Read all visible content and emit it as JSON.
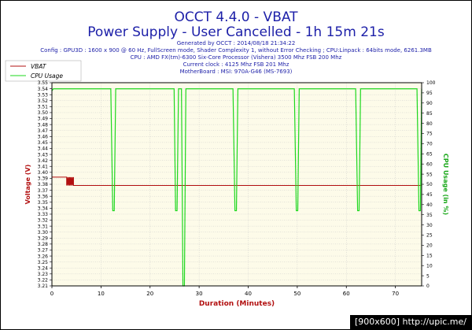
{
  "watermark": "[900x600] http://upic.me/",
  "colors": {
    "title": "#1c1fa8",
    "info": "#1c1fa8",
    "plot_bg": "#fdfbe9",
    "grid": "#c8c8c8",
    "frame_border": "#000000",
    "vbat": "#b21010",
    "cpu": "#1dd81d",
    "left_axis_label": "#b21010",
    "right_axis_label": "#1aa81a",
    "x_axis_label": "#b21010"
  },
  "chart_data": {
    "type": "line",
    "title": "OCCT 4.4.0 - VBAT",
    "subtitle": "Power Supply - User Cancelled - 1h 15m 21s",
    "info_lines": [
      "Generated by OCCT : 2014/08/18 21:34:22",
      "Config : GPU3D : 1600 x 900 @ 60 Hz, FullScreen mode, Shader Complexity 1, without Error Checking ; CPU:Linpack : 64bits mode, 6261.3MB",
      "CPU : AMD FX(tm)-6300 Six-Core Processor (Vishera) 3500 Mhz FSB 200 Mhz",
      "Current clock : 4125 Mhz FSB 201 Mhz",
      "MotherBoard : MSI: 970A-G46 (MS-7693)"
    ],
    "xlabel": "Duration (Minutes)",
    "ylabel_left": "Voltage (V)",
    "ylabel_right": "CPU Usage (in %)",
    "xlim": [
      0,
      75.35
    ],
    "ylim_left": [
      3.21,
      3.55
    ],
    "ylim_right": [
      0,
      100
    ],
    "x_ticks": [
      "0",
      "10",
      "20",
      "30",
      "40",
      "50",
      "60",
      "70"
    ],
    "y_left_ticks": [
      "3.21",
      "3.22",
      "3.23",
      "3.24",
      "3.25",
      "3.26",
      "3.27",
      "3.28",
      "3.29",
      "3.30",
      "3.31",
      "3.32",
      "3.33",
      "3.34",
      "3.35",
      "3.36",
      "3.37",
      "3.38",
      "3.39",
      "3.40",
      "3.41",
      "3.42",
      "3.43",
      "3.44",
      "3.45",
      "3.46",
      "3.47",
      "3.48",
      "3.49",
      "3.50",
      "3.51",
      "3.52",
      "3.53",
      "3.54",
      "3.55"
    ],
    "y_right_ticks": [
      "0",
      "5",
      "10",
      "15",
      "20",
      "25",
      "30",
      "35",
      "40",
      "45",
      "50",
      "55",
      "60",
      "65",
      "70",
      "75",
      "80",
      "85",
      "90",
      "95",
      "100"
    ],
    "grid": true,
    "legend_position": "top-left",
    "series": [
      {
        "name": "VBAT",
        "axis": "left",
        "color": "#b21010",
        "x": [
          0,
          3.0,
          3.0,
          3.2,
          3.2,
          3.4,
          3.4,
          3.6,
          3.6,
          3.8,
          3.8,
          4.0,
          4.0,
          4.2,
          4.2,
          4.4,
          4.4,
          75.35
        ],
        "y": [
          3.392,
          3.392,
          3.378,
          3.392,
          3.378,
          3.392,
          3.378,
          3.392,
          3.378,
          3.392,
          3.378,
          3.392,
          3.378,
          3.392,
          3.378,
          3.392,
          3.378,
          3.378
        ]
      },
      {
        "name": "CPU Usage",
        "axis": "right",
        "color": "#1dd81d",
        "x": [
          0,
          0.3,
          12.0,
          12.4,
          12.7,
          13.0,
          24.9,
          25.2,
          25.5,
          25.8,
          26.4,
          26.7,
          27.0,
          27.3,
          36.9,
          37.3,
          37.6,
          37.9,
          49.4,
          49.8,
          50.1,
          50.4,
          61.9,
          62.3,
          62.6,
          62.9,
          74.4,
          74.8,
          75.1,
          75.35
        ],
        "y": [
          96,
          97,
          97,
          37,
          37,
          97,
          97,
          37,
          37,
          97,
          97,
          0,
          0,
          97,
          97,
          37,
          37,
          97,
          97,
          37,
          37,
          97,
          97,
          37,
          37,
          97,
          97,
          37,
          37,
          97
        ]
      }
    ]
  }
}
